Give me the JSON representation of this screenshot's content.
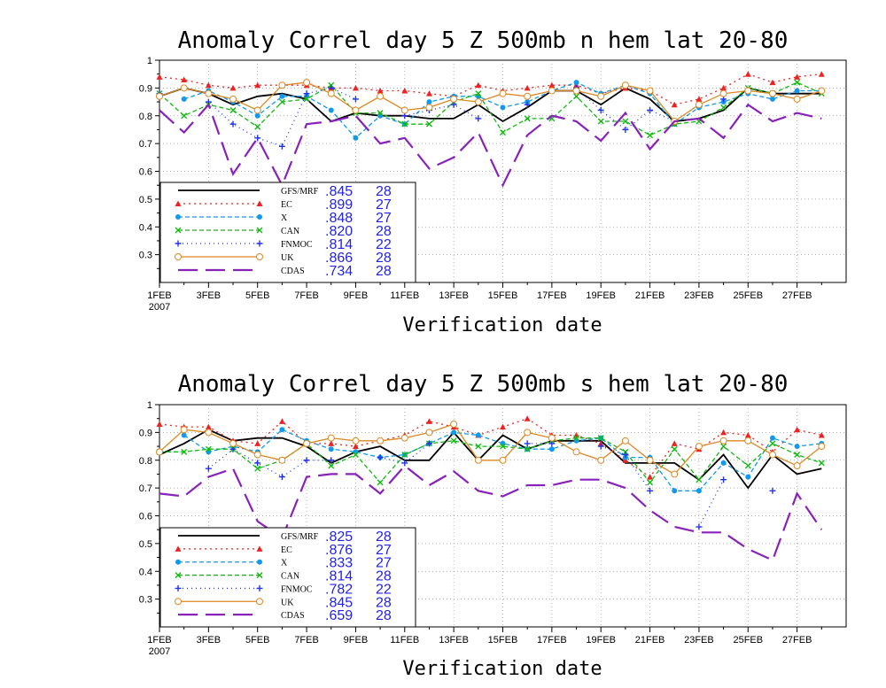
{
  "chart_data": [
    {
      "type": "line",
      "title": "Anomaly Correl  day 5  Z 500mb  n hem  lat 20-80",
      "xlabel": "Verification date",
      "ylabel": "",
      "ylim": [
        0.2,
        1
      ],
      "yticks": [
        "1",
        "0.9",
        "0.8",
        "0.7",
        "0.6",
        "0.5",
        "0.4",
        "0.3"
      ],
      "xticks": [
        {
          "day": 1,
          "label": "1FEB",
          "sub": "2007"
        },
        {
          "day": 3,
          "label": "3FEB"
        },
        {
          "day": 5,
          "label": "5FEB"
        },
        {
          "day": 7,
          "label": "7FEB"
        },
        {
          "day": 9,
          "label": "9FEB"
        },
        {
          "day": 11,
          "label": "11FEB"
        },
        {
          "day": 13,
          "label": "13FEB"
        },
        {
          "day": 15,
          "label": "15FEB"
        },
        {
          "day": 17,
          "label": "17FEB"
        },
        {
          "day": 19,
          "label": "19FEB"
        },
        {
          "day": 21,
          "label": "21FEB"
        },
        {
          "day": 23,
          "label": "23FEB"
        },
        {
          "day": 25,
          "label": "25FEB"
        },
        {
          "day": 27,
          "label": "27FEB"
        }
      ],
      "grid": true,
      "legend_position": "lower-left",
      "x": [
        1,
        2,
        3,
        4,
        5,
        6,
        7,
        8,
        9,
        10,
        11,
        12,
        13,
        14,
        15,
        16,
        17,
        18,
        19,
        20,
        21,
        22,
        23,
        24,
        25,
        26,
        27,
        28
      ],
      "series": [
        {
          "name": "GFS/MRF",
          "mean": ".845",
          "count": "28",
          "color": "#000000",
          "dash": "",
          "marker": "none",
          "values": [
            0.87,
            0.9,
            0.88,
            0.84,
            0.87,
            0.88,
            0.86,
            0.78,
            0.81,
            0.8,
            0.8,
            0.79,
            0.79,
            0.84,
            0.78,
            0.83,
            0.89,
            0.89,
            0.84,
            0.9,
            0.86,
            0.78,
            0.79,
            0.82,
            0.9,
            0.88,
            0.88,
            0.88
          ]
        },
        {
          "name": "EC",
          "mean": ".899",
          "count": "27",
          "color": "#ee2222",
          "dash": "2,4",
          "marker": "triangle",
          "values": [
            0.94,
            0.93,
            0.91,
            0.9,
            0.91,
            0.91,
            0.91,
            0.9,
            0.9,
            0.89,
            0.89,
            0.88,
            0.87,
            0.91,
            0.89,
            0.9,
            0.91,
            0.91,
            0.88,
            0.9,
            0.89,
            0.84,
            0.86,
            0.9,
            0.95,
            0.92,
            0.94,
            0.95
          ]
        },
        {
          "name": "X",
          "mean": ".848",
          "count": "27",
          "color": "#1199ee",
          "dash": "5,3",
          "marker": "circle",
          "values": [
            null,
            0.86,
            0.89,
            0.85,
            0.8,
            0.87,
            0.87,
            0.82,
            0.72,
            0.8,
            0.77,
            0.85,
            0.87,
            0.87,
            0.83,
            0.85,
            0.89,
            0.92,
            0.88,
            0.91,
            0.88,
            0.77,
            0.83,
            0.85,
            0.88,
            0.86,
            0.89,
            0.89
          ]
        },
        {
          "name": "CAN",
          "mean": ".820",
          "count": "28",
          "color": "#11bb11",
          "dash": "5,3",
          "marker": "x",
          "values": [
            0.88,
            0.8,
            0.84,
            0.82,
            0.76,
            0.85,
            0.86,
            0.91,
            0.81,
            0.81,
            0.77,
            0.77,
            0.85,
            0.88,
            0.74,
            0.79,
            0.79,
            0.87,
            0.78,
            0.78,
            0.73,
            0.77,
            0.78,
            0.83,
            0.9,
            0.88,
            0.92,
            0.88
          ]
        },
        {
          "name": "FNMOC",
          "mean": ".814",
          "count": "22",
          "color": "#2233ee",
          "dash": "1,4",
          "marker": "plus",
          "values": [
            0.88,
            null,
            0.85,
            0.77,
            0.72,
            0.69,
            0.88,
            0.9,
            0.86,
            null,
            0.8,
            0.82,
            0.84,
            0.79,
            null,
            0.84,
            null,
            0.9,
            0.82,
            0.75,
            0.82,
            0.78,
            null,
            0.86,
            null,
            0.88,
            null,
            null
          ]
        },
        {
          "name": "UK",
          "mean": ".866",
          "count": "28",
          "color": "#dd8822",
          "dash": "",
          "marker": "opencircle",
          "values": [
            0.87,
            0.9,
            0.88,
            0.86,
            0.82,
            0.91,
            0.92,
            0.88,
            0.82,
            0.87,
            0.82,
            0.83,
            0.86,
            0.85,
            0.88,
            0.87,
            0.89,
            0.89,
            0.87,
            0.91,
            0.89,
            0.78,
            0.84,
            0.88,
            0.89,
            0.88,
            0.86,
            0.89
          ]
        },
        {
          "name": "CDAS",
          "mean": ".734",
          "count": "28",
          "color": "#8822bb",
          "dash": "22,9",
          "marker": "none",
          "values": [
            0.82,
            0.74,
            0.84,
            0.59,
            0.72,
            0.55,
            0.77,
            0.78,
            0.8,
            0.7,
            0.72,
            0.61,
            0.65,
            0.74,
            0.55,
            0.73,
            0.8,
            0.78,
            0.71,
            0.81,
            0.68,
            0.78,
            0.79,
            0.72,
            0.84,
            0.78,
            0.81,
            0.79
          ]
        }
      ]
    },
    {
      "type": "line",
      "title": "Anomaly Correl  day 5  Z 500mb  s hem  lat 20-80",
      "xlabel": "Verification date",
      "ylabel": "",
      "ylim": [
        0.2,
        1
      ],
      "yticks": [
        "1",
        "0.9",
        "0.8",
        "0.7",
        "0.6",
        "0.5",
        "0.4",
        "0.3"
      ],
      "xticks": [
        {
          "day": 1,
          "label": "1FEB",
          "sub": "2007"
        },
        {
          "day": 3,
          "label": "3FEB"
        },
        {
          "day": 5,
          "label": "5FEB"
        },
        {
          "day": 7,
          "label": "7FEB"
        },
        {
          "day": 9,
          "label": "9FEB"
        },
        {
          "day": 11,
          "label": "11FEB"
        },
        {
          "day": 13,
          "label": "13FEB"
        },
        {
          "day": 15,
          "label": "15FEB"
        },
        {
          "day": 17,
          "label": "17FEB"
        },
        {
          "day": 19,
          "label": "19FEB"
        },
        {
          "day": 21,
          "label": "21FEB"
        },
        {
          "day": 23,
          "label": "23FEB"
        },
        {
          "day": 25,
          "label": "25FEB"
        },
        {
          "day": 27,
          "label": "27FEB"
        }
      ],
      "grid": true,
      "legend_position": "lower-left",
      "x": [
        1,
        2,
        3,
        4,
        5,
        6,
        7,
        8,
        9,
        10,
        11,
        12,
        13,
        14,
        15,
        16,
        17,
        18,
        19,
        20,
        21,
        22,
        23,
        24,
        25,
        26,
        27,
        28
      ],
      "series": [
        {
          "name": "GFS/MRF",
          "mean": ".825",
          "count": "28",
          "color": "#000000",
          "dash": "",
          "marker": "none",
          "values": [
            0.82,
            0.86,
            0.91,
            0.87,
            0.88,
            0.88,
            0.85,
            0.79,
            0.83,
            0.85,
            0.8,
            0.8,
            0.9,
            0.8,
            0.89,
            0.84,
            0.87,
            0.87,
            0.87,
            0.79,
            0.79,
            0.79,
            0.73,
            0.82,
            0.7,
            0.82,
            0.75,
            0.77
          ]
        },
        {
          "name": "EC",
          "mean": ".876",
          "count": "27",
          "color": "#ee2222",
          "dash": "2,4",
          "marker": "triangle",
          "values": [
            0.93,
            0.92,
            0.92,
            0.87,
            0.86,
            0.94,
            0.86,
            0.86,
            0.85,
            0.87,
            0.89,
            0.94,
            0.92,
            0.89,
            0.92,
            0.95,
            0.89,
            0.89,
            0.86,
            0.8,
            0.74,
            0.86,
            0.84,
            0.9,
            0.89,
            0.83,
            0.91,
            0.89
          ]
        },
        {
          "name": "X",
          "mean": ".833",
          "count": "27",
          "color": "#1199ee",
          "dash": "5,3",
          "marker": "circle",
          "values": [
            null,
            0.89,
            0.83,
            0.85,
            0.83,
            0.91,
            0.87,
            0.84,
            0.83,
            0.81,
            0.82,
            0.86,
            0.9,
            0.89,
            0.86,
            0.84,
            0.84,
            0.87,
            0.88,
            0.81,
            0.81,
            0.69,
            0.69,
            0.79,
            0.74,
            0.88,
            0.85,
            0.86
          ]
        },
        {
          "name": "CAN",
          "mean": ".814",
          "count": "28",
          "color": "#11bb11",
          "dash": "5,3",
          "marker": "x",
          "values": [
            0.83,
            0.83,
            0.84,
            0.84,
            0.77,
            0.8,
            0.86,
            0.78,
            0.82,
            0.72,
            0.82,
            0.86,
            0.87,
            0.85,
            0.85,
            0.84,
            0.87,
            0.88,
            0.88,
            0.83,
            0.72,
            0.84,
            0.73,
            0.85,
            0.78,
            0.86,
            0.82,
            0.79
          ]
        },
        {
          "name": "FNMOC",
          "mean": ".782",
          "count": "22",
          "color": "#2233ee",
          "dash": "1,4",
          "marker": "plus",
          "values": [
            0.83,
            null,
            0.77,
            0.84,
            0.79,
            0.74,
            0.8,
            0.8,
            null,
            0.81,
            0.79,
            0.86,
            null,
            0.8,
            null,
            0.86,
            0.86,
            null,
            0.85,
            0.82,
            0.69,
            null,
            0.56,
            0.73,
            null,
            0.69,
            null,
            null
          ]
        },
        {
          "name": "UK",
          "mean": ".845",
          "count": "28",
          "color": "#dd8822",
          "dash": "",
          "marker": "opencircle",
          "values": [
            0.83,
            0.91,
            0.9,
            0.86,
            0.82,
            0.8,
            0.86,
            0.88,
            0.87,
            0.87,
            0.88,
            0.9,
            0.93,
            0.8,
            0.8,
            0.9,
            0.88,
            0.83,
            0.8,
            0.87,
            0.8,
            0.75,
            0.85,
            0.87,
            0.87,
            0.82,
            0.78,
            0.85
          ]
        },
        {
          "name": "CDAS",
          "mean": ".659",
          "count": "28",
          "color": "#8822bb",
          "dash": "22,9",
          "marker": "none",
          "values": [
            0.68,
            0.67,
            0.74,
            0.77,
            0.58,
            0.52,
            0.74,
            0.75,
            0.75,
            0.68,
            0.78,
            0.71,
            0.76,
            0.69,
            0.67,
            0.71,
            0.71,
            0.73,
            0.73,
            0.7,
            0.62,
            0.56,
            0.54,
            0.54,
            0.48,
            0.44,
            0.68,
            0.55
          ]
        }
      ]
    }
  ]
}
